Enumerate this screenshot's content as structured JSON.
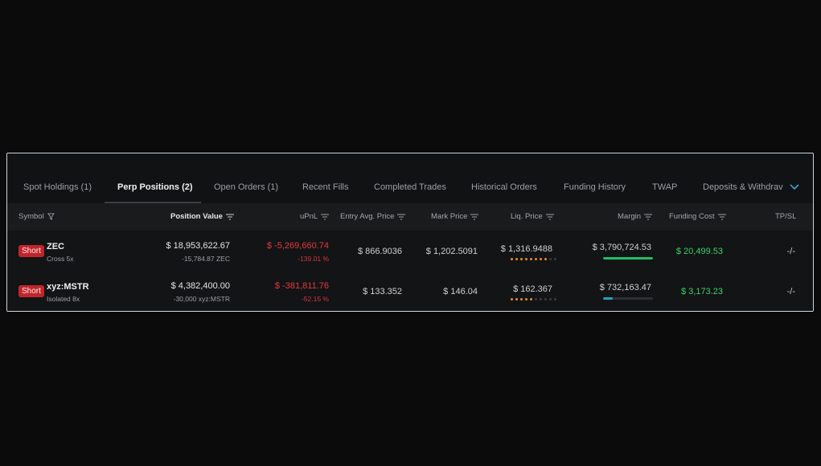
{
  "tabs": [
    {
      "label": "Spot Holdings (1)",
      "active": false
    },
    {
      "label": "Perp Positions (2)",
      "active": true
    },
    {
      "label": "Open Orders (1)",
      "active": false
    },
    {
      "label": "Recent Fills",
      "active": false
    },
    {
      "label": "Completed Trades",
      "active": false
    },
    {
      "label": "Historical Orders",
      "active": false
    },
    {
      "label": "Funding History",
      "active": false
    },
    {
      "label": "TWAP",
      "active": false
    },
    {
      "label": "Deposits & Withdrav",
      "active": false
    }
  ],
  "columns": {
    "symbol": "Symbol",
    "position_value": "Position Value",
    "upnl": "uPnL",
    "entry": "Entry Avg. Price",
    "mark": "Mark Price",
    "liq": "Liq. Price",
    "margin": "Margin",
    "funding": "Funding Cost",
    "tpsl": "TP/SL"
  },
  "rows": [
    {
      "side": "Short",
      "symbol": "ZEC",
      "mode": "Cross 5x",
      "position_value": "$ 18,953,622.67",
      "position_size": "-15,784.87 ZEC",
      "upnl": "$ -5,269,660.74",
      "upnl_pct": "-139.01 %",
      "entry": "$ 866.9036",
      "mark": "$ 1,202.5091",
      "liq": "$ 1,316.9488",
      "liq_risk_level": 8,
      "margin": "$ 3,790,724.53",
      "margin_fraction": 1.0,
      "funding": "$ 20,499.53",
      "tpsl": "-/-"
    },
    {
      "side": "Short",
      "symbol": "xyz:MSTR",
      "mode": "Isolated 8x",
      "position_value": "$ 4,382,400.00",
      "position_size": "-30,000 xyz:MSTR",
      "upnl": "$ -381,811.76",
      "upnl_pct": "-52.15 %",
      "entry": "$ 133.352",
      "mark": "$ 146.04",
      "liq": "$ 162.367",
      "liq_risk_level": 5,
      "margin": "$ 732,163.47",
      "margin_fraction": 0.2,
      "funding": "$ 3,173.23",
      "tpsl": "-/-"
    }
  ],
  "colors": {
    "short_badge": "#c0252b",
    "negative": "#e3393d",
    "positive": "#3ccf6a",
    "risk_dot": "#e58d2a",
    "margin_bar_full": "#1fbf67",
    "margin_bar_partial": "#1fa6c4"
  }
}
